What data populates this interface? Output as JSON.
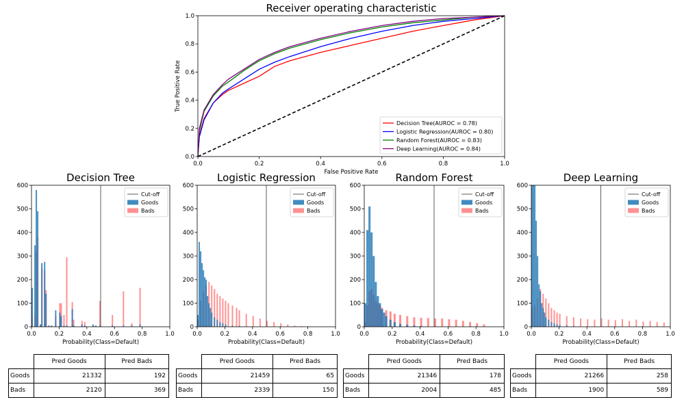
{
  "chart_data": [
    {
      "type": "line",
      "title": "Receiver operating characteristic",
      "xlabel": "False Positive Rate",
      "ylabel": "True Positive Rate",
      "xlim": [
        0,
        1
      ],
      "ylim": [
        0,
        1
      ],
      "xticks": [
        "0.0",
        "0.2",
        "0.4",
        "0.6",
        "0.8",
        "1.0"
      ],
      "yticks": [
        "0.0",
        "0.2",
        "0.4",
        "0.6",
        "0.8",
        "1.0"
      ],
      "legend_position": "lower right",
      "diagonal": {
        "x": [
          0,
          1
        ],
        "y": [
          0,
          1
        ],
        "color": "#000000",
        "style": "dashed"
      },
      "series": [
        {
          "name": "Decision Tree(AUROC = 0.78)",
          "color": "#ff0000",
          "x": [
            0,
            0.005,
            0.02,
            0.05,
            0.08,
            0.1,
            0.15,
            0.2,
            0.25,
            0.3,
            0.4,
            0.5,
            0.6,
            0.7,
            0.8,
            0.9,
            1.0
          ],
          "y": [
            0,
            0.15,
            0.27,
            0.38,
            0.44,
            0.47,
            0.52,
            0.57,
            0.64,
            0.68,
            0.74,
            0.79,
            0.84,
            0.89,
            0.93,
            0.97,
            1.0
          ]
        },
        {
          "name": "Logistic Regression(AUROC = 0.80)",
          "color": "#0000ff",
          "x": [
            0,
            0.005,
            0.02,
            0.05,
            0.08,
            0.1,
            0.15,
            0.2,
            0.25,
            0.3,
            0.4,
            0.5,
            0.6,
            0.7,
            0.8,
            0.9,
            1.0
          ],
          "y": [
            0,
            0.14,
            0.26,
            0.38,
            0.45,
            0.48,
            0.55,
            0.62,
            0.67,
            0.71,
            0.78,
            0.84,
            0.89,
            0.93,
            0.96,
            0.98,
            1.0
          ]
        },
        {
          "name": "Random Forest(AUROC = 0.83)",
          "color": "#008000",
          "x": [
            0,
            0.005,
            0.02,
            0.05,
            0.08,
            0.1,
            0.15,
            0.2,
            0.25,
            0.3,
            0.4,
            0.5,
            0.6,
            0.7,
            0.8,
            0.9,
            1.0
          ],
          "y": [
            0,
            0.18,
            0.32,
            0.43,
            0.5,
            0.53,
            0.61,
            0.68,
            0.73,
            0.77,
            0.83,
            0.88,
            0.92,
            0.95,
            0.97,
            0.99,
            1.0
          ]
        },
        {
          "name": "Deep Learning(AUROC = 0.84)",
          "color": "#800080",
          "x": [
            0,
            0.005,
            0.02,
            0.05,
            0.08,
            0.1,
            0.15,
            0.2,
            0.25,
            0.3,
            0.4,
            0.5,
            0.6,
            0.7,
            0.8,
            0.9,
            1.0
          ],
          "y": [
            0,
            0.2,
            0.33,
            0.44,
            0.51,
            0.55,
            0.62,
            0.69,
            0.74,
            0.78,
            0.84,
            0.89,
            0.93,
            0.96,
            0.98,
            0.99,
            1.0
          ]
        }
      ]
    },
    {
      "type": "bar",
      "title": "Decision Tree",
      "xlabel": "Probability(Class=Default)",
      "xlim": [
        0,
        1
      ],
      "ylim": [
        0,
        600
      ],
      "xticks": [
        "0.0",
        "0.2",
        "0.4",
        "0.6",
        "0.8",
        "1.0"
      ],
      "yticks": [
        "0",
        "100",
        "200",
        "300",
        "400",
        "500",
        "600"
      ],
      "cutoff": 0.5,
      "legend": [
        "Cut-off",
        "Goods",
        "Bads"
      ],
      "bin_width": 0.01,
      "goods": {
        "x": [
          0.0,
          0.02,
          0.03,
          0.04,
          0.06,
          0.07,
          0.09,
          0.1,
          0.12,
          0.14,
          0.17,
          0.2,
          0.21,
          0.23,
          0.25,
          0.29,
          0.3,
          0.36,
          0.38,
          0.44,
          0.46,
          0.49,
          0.58,
          0.66,
          0.72,
          0.78
        ],
        "y": [
          165,
          345,
          580,
          490,
          10,
          270,
          275,
          140,
          5,
          5,
          70,
          60,
          45,
          5,
          5,
          75,
          5,
          10,
          5,
          10,
          5,
          5,
          5,
          5,
          5,
          10
        ]
      },
      "bads": {
        "x": [
          0.0,
          0.02,
          0.03,
          0.04,
          0.06,
          0.07,
          0.09,
          0.1,
          0.12,
          0.14,
          0.17,
          0.2,
          0.21,
          0.23,
          0.25,
          0.29,
          0.3,
          0.36,
          0.38,
          0.44,
          0.46,
          0.49,
          0.58,
          0.66,
          0.72,
          0.78
        ],
        "y": [
          45,
          50,
          320,
          380,
          10,
          250,
          240,
          155,
          5,
          5,
          45,
          100,
          100,
          50,
          295,
          105,
          30,
          25,
          20,
          5,
          5,
          110,
          50,
          150,
          15,
          165
        ]
      }
    },
    {
      "type": "bar",
      "title": "Logistic Regression",
      "xlabel": "Probability(Class=Default)",
      "xlim": [
        0,
        1
      ],
      "ylim": [
        0,
        600
      ],
      "xticks": [
        "0.0",
        "0.2",
        "0.4",
        "0.6",
        "0.8",
        "1.0"
      ],
      "yticks": [
        "0",
        "100",
        "200",
        "300",
        "400",
        "500",
        "600"
      ],
      "cutoff": 0.5,
      "legend": [
        "Cut-off",
        "Goods",
        "Bads"
      ],
      "bin_width": 0.01,
      "goods": {
        "x": [
          0.0,
          0.01,
          0.02,
          0.03,
          0.04,
          0.05,
          0.06,
          0.07,
          0.08,
          0.09,
          0.1,
          0.12,
          0.14,
          0.16,
          0.18,
          0.2,
          0.25,
          0.3,
          0.35,
          0.4,
          0.5
        ],
        "y": [
          50,
          360,
          320,
          270,
          240,
          210,
          200,
          130,
          100,
          80,
          60,
          40,
          30,
          20,
          15,
          10,
          5,
          3,
          2,
          1,
          0
        ]
      },
      "bads": {
        "x": [
          0.0,
          0.02,
          0.04,
          0.06,
          0.08,
          0.1,
          0.12,
          0.14,
          0.16,
          0.18,
          0.2,
          0.22,
          0.25,
          0.28,
          0.3,
          0.35,
          0.4,
          0.45,
          0.5,
          0.55,
          0.6,
          0.65,
          0.7,
          0.75,
          0.8
        ],
        "y": [
          30,
          110,
          150,
          175,
          190,
          175,
          160,
          140,
          130,
          120,
          110,
          100,
          90,
          80,
          70,
          55,
          45,
          35,
          25,
          20,
          15,
          10,
          5,
          3,
          2
        ]
      }
    },
    {
      "type": "bar",
      "title": "Random Forest",
      "xlabel": "Probability(Class=Default)",
      "xlim": [
        0,
        1
      ],
      "ylim": [
        0,
        600
      ],
      "xticks": [
        "0.0",
        "0.2",
        "0.4",
        "0.6",
        "0.8",
        "1.0"
      ],
      "yticks": [
        "0",
        "100",
        "200",
        "300",
        "400",
        "500",
        "600"
      ],
      "cutoff": 0.5,
      "legend": [
        "Cut-off",
        "Goods",
        "Bads"
      ],
      "bin_width": 0.015,
      "goods": {
        "x": [
          0.0,
          0.015,
          0.03,
          0.045,
          0.06,
          0.075,
          0.09,
          0.105,
          0.12,
          0.135,
          0.15,
          0.18,
          0.21,
          0.25,
          0.3,
          0.35,
          0.4,
          0.5
        ],
        "y": [
          100,
          410,
          510,
          400,
          300,
          190,
          130,
          100,
          75,
          60,
          45,
          30,
          20,
          12,
          8,
          5,
          3,
          1
        ]
      },
      "bads": {
        "x": [
          0.0,
          0.015,
          0.03,
          0.045,
          0.06,
          0.075,
          0.09,
          0.105,
          0.12,
          0.15,
          0.18,
          0.21,
          0.25,
          0.3,
          0.35,
          0.4,
          0.45,
          0.5,
          0.55,
          0.6,
          0.65,
          0.7,
          0.75,
          0.8,
          0.85
        ],
        "y": [
          20,
          90,
          150,
          160,
          135,
          110,
          100,
          90,
          80,
          70,
          65,
          55,
          50,
          45,
          40,
          38,
          37,
          35,
          35,
          32,
          30,
          25,
          20,
          15,
          10
        ]
      }
    },
    {
      "type": "bar",
      "title": "Deep Learning",
      "xlabel": "Probability(Class=Default)",
      "xlim": [
        0,
        1
      ],
      "ylim": [
        0,
        600
      ],
      "xticks": [
        "0.0",
        "0.2",
        "0.4",
        "0.6",
        "0.8",
        "1.0"
      ],
      "yticks": [
        "0",
        "100",
        "200",
        "300",
        "400",
        "500",
        "600"
      ],
      "cutoff": 0.5,
      "legend": [
        "Cut-off",
        "Goods",
        "Bads"
      ],
      "bin_width": 0.01,
      "goods": {
        "x": [
          0.0,
          0.01,
          0.02,
          0.03,
          0.04,
          0.05,
          0.06,
          0.07,
          0.08,
          0.09,
          0.1,
          0.12,
          0.14,
          0.16,
          0.18,
          0.2,
          0.25,
          0.3,
          0.4
        ],
        "y": [
          600,
          600,
          600,
          450,
          300,
          180,
          150,
          100,
          80,
          60,
          40,
          30,
          20,
          15,
          10,
          7,
          5,
          3,
          1
        ]
      },
      "bads": {
        "x": [
          0.0,
          0.02,
          0.04,
          0.06,
          0.08,
          0.1,
          0.12,
          0.14,
          0.16,
          0.18,
          0.2,
          0.25,
          0.3,
          0.35,
          0.4,
          0.45,
          0.5,
          0.55,
          0.6,
          0.65,
          0.7,
          0.75,
          0.8,
          0.85,
          0.9,
          0.95
        ],
        "y": [
          80,
          90,
          120,
          160,
          140,
          120,
          100,
          80,
          70,
          60,
          55,
          45,
          40,
          35,
          32,
          30,
          35,
          30,
          28,
          32,
          25,
          30,
          22,
          25,
          20,
          18
        ]
      }
    }
  ],
  "confusion_tables": [
    {
      "col_headers": [
        "Pred Goods",
        "Pred Bads"
      ],
      "rows": [
        {
          "label": "Goods",
          "values": [
            "21332",
            "192"
          ]
        },
        {
          "label": "Bads",
          "values": [
            "2120",
            "369"
          ]
        }
      ]
    },
    {
      "col_headers": [
        "Pred Goods",
        "Pred Bads"
      ],
      "rows": [
        {
          "label": "Goods",
          "values": [
            "21459",
            "65"
          ]
        },
        {
          "label": "Bads",
          "values": [
            "2339",
            "150"
          ]
        }
      ]
    },
    {
      "col_headers": [
        "Pred Goods",
        "Pred Bads"
      ],
      "rows": [
        {
          "label": "Goods",
          "values": [
            "21346",
            "178"
          ]
        },
        {
          "label": "Bads",
          "values": [
            "2004",
            "485"
          ]
        }
      ]
    },
    {
      "col_headers": [
        "Pred Goods",
        "Pred Bads"
      ],
      "rows": [
        {
          "label": "Goods",
          "values": [
            "21266",
            "258"
          ]
        },
        {
          "label": "Bads",
          "values": [
            "1900",
            "589"
          ]
        }
      ]
    }
  ],
  "colors": {
    "goods": "#1f77b4",
    "bads": "#ff7f7f",
    "cutoff": "#333333"
  }
}
